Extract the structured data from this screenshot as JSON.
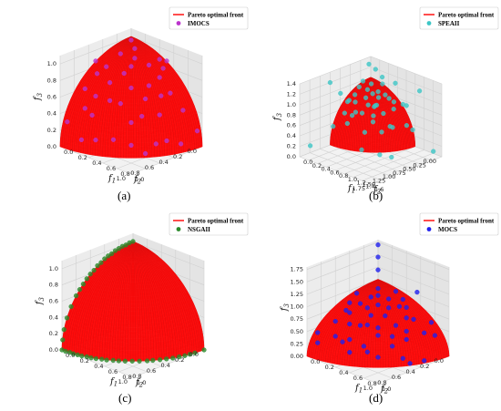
{
  "colors": {
    "front": "#ff0000",
    "imocs": "#bb33cc",
    "speaii": "#3dc6c6",
    "nsgaii": "#2a8a2a",
    "mocs": "#2020ee",
    "pane": "#ececec",
    "grid": "#d0d0d0"
  },
  "chart_data": [
    {
      "type": "scatter",
      "caption": "(a)",
      "legend": [
        "Pareto optimal front",
        "IMOCS"
      ],
      "xlabel": "f1",
      "ylabel": "f2",
      "zlabel": "f3",
      "x_ticks": [
        "0.0",
        "0.2",
        "0.4",
        "0.6",
        "0.8",
        "1.0"
      ],
      "y_ticks": [
        "0.0",
        "0.2",
        "0.4",
        "0.6",
        "0.8",
        "1.0"
      ],
      "z_ticks": [
        "0.0",
        "0.2",
        "0.4",
        "0.6",
        "0.8",
        "1.0"
      ],
      "xlim": [
        0,
        1
      ],
      "ylim": [
        0,
        1
      ],
      "zlim": [
        0,
        1.1
      ],
      "front_series": "Pareto optimal front",
      "point_series": "IMOCS",
      "point_color": "#bb33cc",
      "points": [
        [
          0.05,
          0.05,
          0.99
        ],
        [
          0.12,
          0.6,
          0.79
        ],
        [
          0.3,
          0.25,
          0.92
        ],
        [
          0.55,
          0.1,
          0.83
        ],
        [
          0.7,
          0.55,
          0.45
        ],
        [
          0.2,
          0.85,
          0.48
        ],
        [
          0.88,
          0.15,
          0.45
        ],
        [
          0.4,
          0.7,
          0.59
        ],
        [
          0.6,
          0.35,
          0.72
        ],
        [
          0.35,
          0.45,
          0.82
        ],
        [
          0.15,
          0.3,
          0.94
        ],
        [
          0.5,
          0.5,
          0.71
        ],
        [
          0.8,
          0.4,
          0.45
        ],
        [
          0.25,
          0.95,
          0.15
        ],
        [
          0.95,
          0.25,
          0.1
        ],
        [
          0.65,
          0.65,
          0.39
        ],
        [
          0.45,
          0.2,
          0.87
        ],
        [
          0.1,
          0.75,
          0.65
        ],
        [
          0.75,
          0.2,
          0.63
        ],
        [
          0.3,
          0.6,
          0.74
        ],
        [
          0.55,
          0.8,
          0.2
        ],
        [
          0.85,
          0.5,
          0.15
        ],
        [
          0.2,
          0.15,
          0.97
        ],
        [
          0.4,
          0.9,
          0.18
        ],
        [
          0.9,
          0.4,
          0.17
        ],
        [
          0.7,
          0.7,
          0.15
        ],
        [
          0.05,
          0.95,
          0.3
        ],
        [
          0.98,
          0.05,
          0.2
        ],
        [
          0.6,
          0.2,
          0.77
        ],
        [
          0.35,
          0.35,
          0.87
        ],
        [
          0.5,
          0.65,
          0.57
        ],
        [
          0.8,
          0.6,
          0.05
        ],
        [
          0.15,
          0.5,
          0.85
        ],
        [
          0.45,
          0.05,
          0.89
        ],
        [
          0.25,
          0.75,
          0.61
        ],
        [
          0.65,
          0.45,
          0.61
        ],
        [
          0.0,
          0.5,
          0.87
        ],
        [
          0.5,
          0.0,
          0.87
        ],
        [
          0.72,
          0.3,
          0.62
        ],
        [
          0.3,
          0.85,
          0.43
        ]
      ]
    },
    {
      "type": "scatter",
      "caption": "(b)",
      "legend": [
        "Pareto optimal front",
        "SPEAII"
      ],
      "xlabel": "f1",
      "ylabel": "f2",
      "zlabel": "f3",
      "x_ticks": [
        "0.0",
        "0.2",
        "0.4",
        "0.6",
        "0.8",
        "1.0",
        "1.2",
        "1.4",
        "1.6"
      ],
      "y_ticks": [
        "0.00",
        "0.25",
        "0.50",
        "0.75",
        "1.00",
        "1.25",
        "1.50",
        "1.75"
      ],
      "z_ticks": [
        "0.0",
        "0.2",
        "0.4",
        "0.6",
        "0.8",
        "1.0",
        "1.2",
        "1.4"
      ],
      "xlim": [
        0,
        1.6
      ],
      "ylim": [
        0,
        1.75
      ],
      "zlim": [
        0,
        1.4
      ],
      "front_series": "Pareto optimal front",
      "point_series": "SPEAII",
      "point_color": "#3dc6c6",
      "points": [
        [
          0.2,
          0.3,
          0.92
        ],
        [
          0.5,
          0.4,
          0.75
        ],
        [
          0.3,
          0.7,
          0.64
        ],
        [
          0.7,
          0.2,
          0.68
        ],
        [
          0.4,
          0.5,
          0.75
        ],
        [
          0.6,
          0.6,
          0.52
        ],
        [
          0.1,
          0.5,
          0.85
        ],
        [
          0.8,
          0.4,
          0.44
        ],
        [
          0.35,
          0.2,
          0.9
        ],
        [
          0.55,
          0.75,
          0.35
        ],
        [
          0.25,
          0.85,
          0.45
        ],
        [
          0.9,
          0.1,
          0.4
        ],
        [
          0.45,
          0.3,
          0.85
        ],
        [
          0.65,
          0.4,
          0.64
        ],
        [
          0.15,
          0.15,
          0.97
        ],
        [
          0.4,
          0.65,
          0.64
        ],
        [
          0.75,
          0.55,
          0.36
        ],
        [
          0.3,
          0.45,
          0.84
        ],
        [
          0.55,
          0.15,
          0.82
        ],
        [
          0.2,
          0.6,
          0.77
        ],
        [
          1.5,
          0.1,
          0.1
        ],
        [
          0.1,
          1.6,
          0.2
        ],
        [
          0.05,
          0.1,
          1.3
        ],
        [
          1.3,
          1.2,
          0.3
        ],
        [
          0.9,
          0.9,
          1.0
        ],
        [
          0.0,
          1.0,
          1.2
        ],
        [
          1.1,
          0.0,
          1.1
        ],
        [
          0.6,
          1.3,
          0.9
        ],
        [
          0.2,
          0.1,
          1.25
        ],
        [
          0.35,
          0.1,
          1.15
        ],
        [
          1.4,
          0.5,
          0.6
        ],
        [
          0.8,
          1.1,
          0.2
        ],
        [
          0.6,
          0.05,
          1.1
        ],
        [
          1.0,
          0.3,
          0.9
        ],
        [
          0.45,
          0.95,
          0.7
        ],
        [
          0.1,
          0.3,
          1.05
        ],
        [
          0.7,
          0.7,
          0.7
        ],
        [
          0.5,
          0.5,
          1.0
        ],
        [
          1.2,
          0.8,
          0.1
        ],
        [
          0.25,
          1.2,
          0.5
        ],
        [
          0.95,
          0.5,
          0.5
        ],
        [
          0.05,
          0.8,
          0.95
        ],
        [
          0.85,
          0.05,
          0.75
        ],
        [
          0.6,
          0.3,
          0.95
        ],
        [
          0.3,
          0.9,
          0.9
        ],
        [
          0.15,
          0.45,
          1.0
        ],
        [
          0.4,
          0.15,
          1.05
        ],
        [
          0.75,
          0.25,
          0.85
        ],
        [
          0.65,
          0.6,
          0.85
        ],
        [
          0.2,
          0.75,
          0.85
        ]
      ]
    },
    {
      "type": "scatter",
      "caption": "(c)",
      "legend": [
        "Pareto optimal front",
        "NSGAII"
      ],
      "xlabel": "f1",
      "ylabel": "f2",
      "zlabel": "f3",
      "x_ticks": [
        "0.0",
        "0.2",
        "0.4",
        "0.6",
        "0.8",
        "1.0"
      ],
      "y_ticks": [
        "0.0",
        "0.2",
        "0.4",
        "0.6",
        "0.8",
        "1.0"
      ],
      "z_ticks": [
        "0.0",
        "0.2",
        "0.4",
        "0.6",
        "0.8",
        "1.0"
      ],
      "xlim": [
        0,
        1
      ],
      "ylim": [
        0,
        1
      ],
      "zlim": [
        0,
        1.1
      ],
      "front_series": "Pareto optimal front",
      "point_series": "NSGAII",
      "point_color": "#2a8a2a",
      "points": [
        [
          0.0,
          0.0,
          1.0
        ],
        [
          0.0,
          0.1,
          0.99
        ],
        [
          0.0,
          0.2,
          0.98
        ],
        [
          0.0,
          0.3,
          0.95
        ],
        [
          0.0,
          0.4,
          0.92
        ],
        [
          0.0,
          0.5,
          0.87
        ],
        [
          0.0,
          0.6,
          0.8
        ],
        [
          0.0,
          0.7,
          0.71
        ],
        [
          0.0,
          0.8,
          0.6
        ],
        [
          0.0,
          0.87,
          0.49
        ],
        [
          0.0,
          0.93,
          0.37
        ],
        [
          0.0,
          0.97,
          0.24
        ],
        [
          0.0,
          0.99,
          0.12
        ],
        [
          0.0,
          1.0,
          0.0
        ],
        [
          0.1,
          0.99,
          0.0
        ],
        [
          0.2,
          0.98,
          0.0
        ],
        [
          0.3,
          0.95,
          0.0
        ],
        [
          0.4,
          0.92,
          0.0
        ],
        [
          0.5,
          0.87,
          0.0
        ],
        [
          0.6,
          0.8,
          0.0
        ],
        [
          0.7,
          0.71,
          0.0
        ],
        [
          0.8,
          0.6,
          0.0
        ],
        [
          0.87,
          0.49,
          0.0
        ],
        [
          0.93,
          0.37,
          0.0
        ],
        [
          0.97,
          0.24,
          0.0
        ],
        [
          0.99,
          0.12,
          0.0
        ],
        [
          1.0,
          0.0,
          0.0
        ],
        [
          0.0,
          0.05,
          1.0
        ],
        [
          0.0,
          0.15,
          0.99
        ],
        [
          0.0,
          0.25,
          0.97
        ],
        [
          0.0,
          0.35,
          0.94
        ],
        [
          0.0,
          0.45,
          0.89
        ],
        [
          0.0,
          0.55,
          0.83
        ],
        [
          0.0,
          0.65,
          0.76
        ],
        [
          0.0,
          0.75,
          0.66
        ],
        [
          0.05,
          1.0,
          0.0
        ],
        [
          0.15,
          0.99,
          0.0
        ],
        [
          0.25,
          0.97,
          0.0
        ],
        [
          0.35,
          0.94,
          0.0
        ],
        [
          0.45,
          0.89,
          0.0
        ],
        [
          0.55,
          0.83,
          0.0
        ],
        [
          0.65,
          0.76,
          0.0
        ],
        [
          0.75,
          0.66,
          0.0
        ],
        [
          0.83,
          0.55,
          0.0
        ],
        [
          0.9,
          0.43,
          0.0
        ],
        [
          0.95,
          0.3,
          0.0
        ],
        [
          0.98,
          0.18,
          0.0
        ]
      ]
    },
    {
      "type": "scatter",
      "caption": "(d)",
      "legend": [
        "Pareto optimal front",
        "MOCS"
      ],
      "xlabel": "f1",
      "ylabel": "f2",
      "zlabel": "f3",
      "x_ticks": [
        "0.0",
        "0.2",
        "0.4",
        "0.6",
        "0.8",
        "1.0"
      ],
      "y_ticks": [
        "0.0",
        "0.2",
        "0.4",
        "0.6",
        "0.8",
        "1.0"
      ],
      "z_ticks": [
        "0.00",
        "0.25",
        "0.50",
        "0.75",
        "1.00",
        "1.25",
        "1.50",
        "1.75"
      ],
      "xlim": [
        0,
        1
      ],
      "ylim": [
        0,
        1
      ],
      "zlim": [
        0,
        1.8
      ],
      "front_series": "Pareto optimal front",
      "point_series": "MOCS",
      "point_color": "#2020ee",
      "points": [
        [
          0.2,
          0.3,
          0.92
        ],
        [
          0.5,
          0.4,
          0.76
        ],
        [
          0.3,
          0.7,
          0.65
        ],
        [
          0.7,
          0.2,
          0.69
        ],
        [
          0.4,
          0.5,
          0.77
        ],
        [
          0.6,
          0.6,
          0.53
        ],
        [
          0.1,
          0.5,
          0.86
        ],
        [
          0.8,
          0.4,
          0.45
        ],
        [
          0.35,
          0.2,
          0.91
        ],
        [
          0.55,
          0.75,
          0.37
        ],
        [
          0.25,
          0.85,
          0.46
        ],
        [
          0.9,
          0.1,
          0.42
        ],
        [
          0.45,
          0.3,
          0.84
        ],
        [
          0.65,
          0.4,
          0.65
        ],
        [
          0.15,
          0.15,
          0.98
        ],
        [
          0.4,
          0.65,
          0.65
        ],
        [
          0.75,
          0.55,
          0.37
        ],
        [
          0.3,
          0.45,
          0.84
        ],
        [
          0.55,
          0.15,
          0.82
        ],
        [
          0.2,
          0.6,
          0.77
        ],
        [
          0.05,
          0.05,
          1.75
        ],
        [
          0.0,
          0.0,
          1.45
        ],
        [
          0.1,
          0.1,
          1.3
        ],
        [
          0.6,
          0.05,
          1.1
        ],
        [
          0.5,
          0.9,
          0.3
        ],
        [
          0.85,
          0.2,
          0.5
        ],
        [
          0.35,
          0.85,
          0.4
        ],
        [
          0.05,
          0.9,
          0.45
        ],
        [
          0.95,
          0.3,
          0.05
        ],
        [
          0.7,
          0.7,
          0.2
        ],
        [
          0.15,
          0.75,
          0.65
        ],
        [
          0.8,
          0.05,
          0.6
        ],
        [
          0.45,
          0.1,
          0.9
        ],
        [
          0.25,
          0.25,
          0.95
        ],
        [
          0.65,
          0.25,
          0.72
        ],
        [
          0.4,
          0.8,
          0.45
        ],
        [
          0.9,
          0.45,
          0.05
        ],
        [
          0.1,
          0.95,
          0.3
        ],
        [
          0.55,
          0.55,
          0.63
        ],
        [
          0.3,
          0.05,
          0.95
        ],
        [
          0.75,
          0.35,
          0.56
        ],
        [
          0.2,
          0.45,
          0.87
        ],
        [
          0.6,
          0.75,
          0.28
        ],
        [
          0.05,
          0.35,
          0.94
        ],
        [
          0.85,
          0.5,
          0.15
        ],
        [
          0.45,
          0.6,
          0.66
        ],
        [
          0.35,
          0.35,
          0.87
        ],
        [
          0.7,
          0.5,
          0.51
        ],
        [
          0.15,
          0.6,
          0.79
        ],
        [
          0.5,
          0.2,
          0.84
        ]
      ]
    }
  ]
}
